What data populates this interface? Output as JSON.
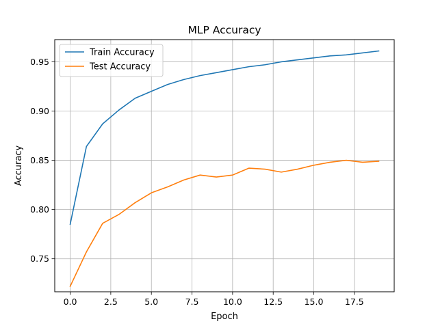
{
  "chart_data": {
    "type": "line",
    "title": "MLP Accuracy",
    "xlabel": "Epoch",
    "ylabel": "Accuracy",
    "xlim": [
      -0.95,
      19.95
    ],
    "ylim": [
      0.7165,
      0.9725
    ],
    "grid": true,
    "legend_position": "top-left",
    "x_ticks": [
      0.0,
      2.5,
      5.0,
      7.5,
      10.0,
      12.5,
      15.0,
      17.5
    ],
    "x_tick_labels": [
      "0.0",
      "2.5",
      "5.0",
      "7.5",
      "10.0",
      "12.5",
      "15.0",
      "17.5"
    ],
    "y_ticks": [
      0.75,
      0.8,
      0.85,
      0.9,
      0.95
    ],
    "y_tick_labels": [
      "0.75",
      "0.80",
      "0.85",
      "0.90",
      "0.95"
    ],
    "x": [
      0,
      1,
      2,
      3,
      4,
      5,
      6,
      7,
      8,
      9,
      10,
      11,
      12,
      13,
      14,
      15,
      16,
      17,
      18,
      19
    ],
    "series": [
      {
        "name": "Train Accuracy",
        "color": "#1f77b4",
        "values": [
          0.785,
          0.864,
          0.887,
          0.901,
          0.913,
          0.92,
          0.927,
          0.932,
          0.936,
          0.939,
          0.942,
          0.945,
          0.947,
          0.95,
          0.952,
          0.954,
          0.956,
          0.957,
          0.959,
          0.961
        ]
      },
      {
        "name": "Test Accuracy",
        "color": "#ff7f0e",
        "values": [
          0.722,
          0.757,
          0.786,
          0.795,
          0.807,
          0.817,
          0.823,
          0.83,
          0.835,
          0.833,
          0.835,
          0.842,
          0.841,
          0.838,
          0.841,
          0.845,
          0.848,
          0.85,
          0.848,
          0.849
        ]
      }
    ]
  }
}
